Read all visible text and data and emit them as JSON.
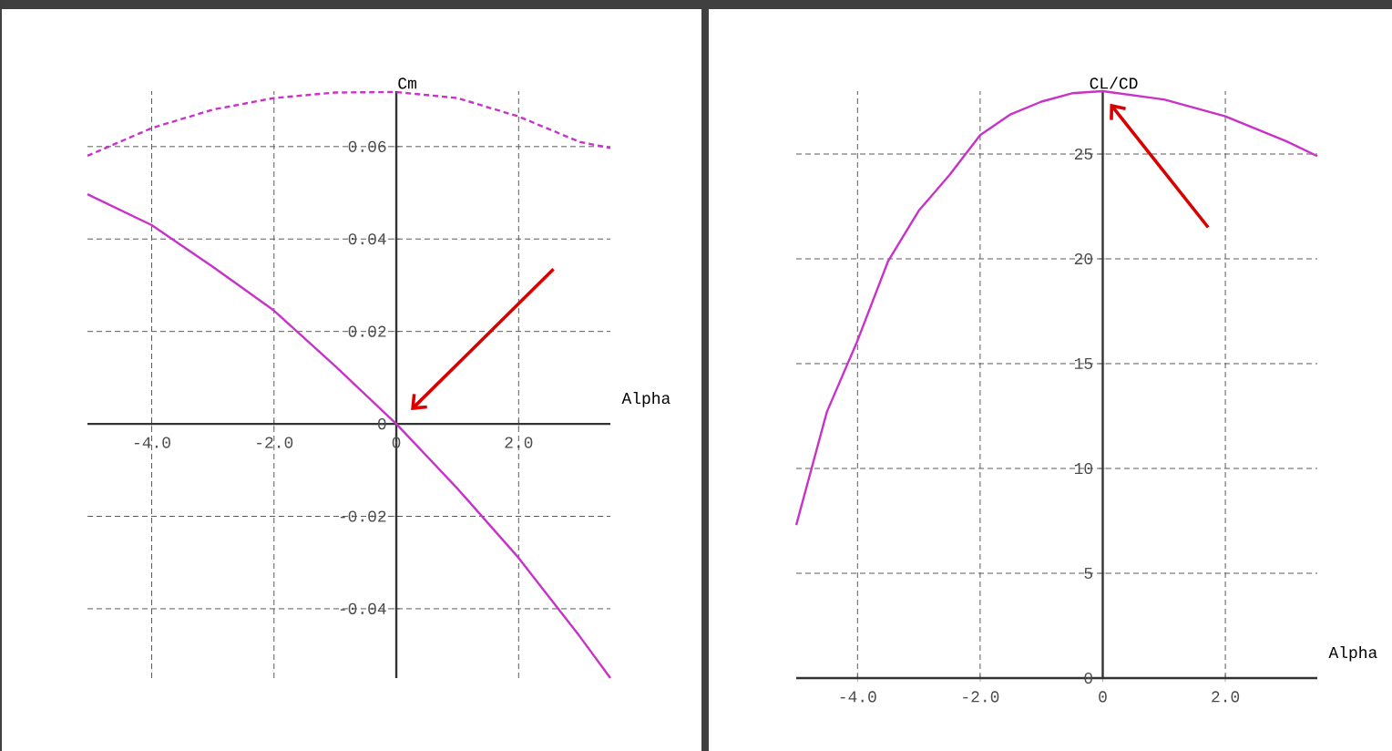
{
  "chart_data": [
    {
      "type": "line",
      "ylabel": "Cm",
      "xlabel": "Alpha",
      "grid": true,
      "marker": "none",
      "x": [
        -5.05,
        -4,
        -3,
        -2,
        -1,
        0,
        1,
        2,
        3,
        3.5
      ],
      "xlim": [
        -5.05,
        3.5
      ],
      "ylim": [
        -0.055,
        0.072
      ],
      "xticks": [
        {
          "value": -4,
          "label": "-4.0"
        },
        {
          "value": -2,
          "label": "-2.0"
        },
        0,
        {
          "value": 2,
          "label": "2.0"
        }
      ],
      "yticks": [
        -0.04,
        -0.02,
        0,
        0.02,
        0.04,
        0.06
      ],
      "series": [
        {
          "color": "#c832c8",
          "line_style": "solid",
          "values": [
            0.0497,
            0.043,
            0.034,
            0.0245,
            0.0125,
            0,
            -0.014,
            -0.029,
            -0.046,
            -0.055
          ]
        },
        {
          "color": "#c832c8",
          "line_style": "dashed",
          "values": [
            0.058,
            0.064,
            0.068,
            0.0705,
            0.0717,
            0.0718,
            0.0705,
            0.0665,
            0.061,
            0.0597
          ]
        }
      ]
    },
    {
      "type": "line",
      "ylabel": "CL/CD",
      "xlabel": "Alpha",
      "grid": true,
      "marker": "none",
      "x": [
        -5,
        -4.5,
        -4,
        -3.5,
        -3,
        -2.5,
        -2,
        -1.5,
        -1,
        -0.5,
        0,
        1,
        2,
        3,
        3.5
      ],
      "xlim": [
        -5,
        3.5
      ],
      "ylim": [
        0,
        28
      ],
      "xticks": [
        {
          "value": -4,
          "label": "-4.0"
        },
        {
          "value": -2,
          "label": "-2.0"
        },
        0,
        {
          "value": 2,
          "label": "2.0"
        }
      ],
      "yticks": [
        0,
        5,
        10,
        15,
        20,
        25
      ],
      "series": [
        {
          "color": "#c832c8",
          "line_style": "solid",
          "values": [
            7.3,
            12.7,
            16.1,
            19.9,
            22.3,
            24.0,
            25.9,
            26.9,
            27.5,
            27.9,
            28.0,
            27.6,
            26.8,
            25.6,
            24.9
          ]
        }
      ]
    }
  ]
}
